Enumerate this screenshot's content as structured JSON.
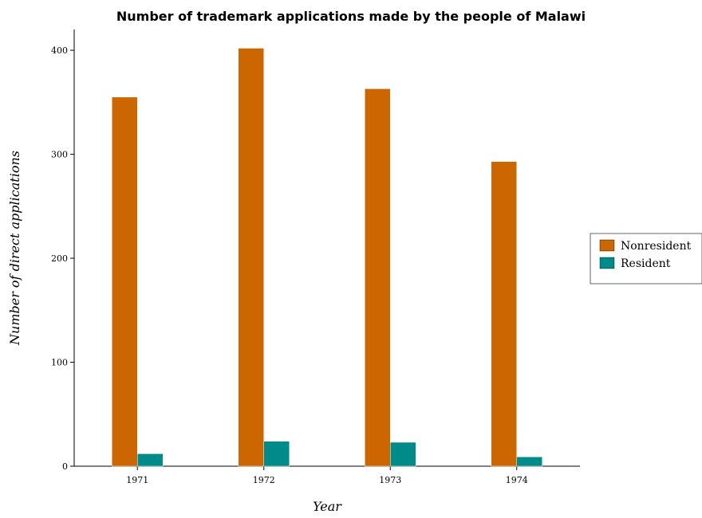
{
  "chart_data": {
    "type": "bar",
    "title": "Number of trademark applications made by the people of Malawi",
    "xlabel": "Year",
    "ylabel": "Number of direct applications",
    "categories": [
      "1971",
      "1972",
      "1973",
      "1974"
    ],
    "series": [
      {
        "name": "Nonresident",
        "values": [
          355,
          402,
          363,
          293
        ],
        "color": "#cc6600"
      },
      {
        "name": "Resident",
        "values": [
          12,
          24,
          23,
          9
        ],
        "color": "#008b8b"
      }
    ],
    "ylim": [
      0,
      420
    ],
    "yticks": [
      0,
      100,
      200,
      300,
      400
    ],
    "grid": false,
    "legend_position": "right"
  }
}
